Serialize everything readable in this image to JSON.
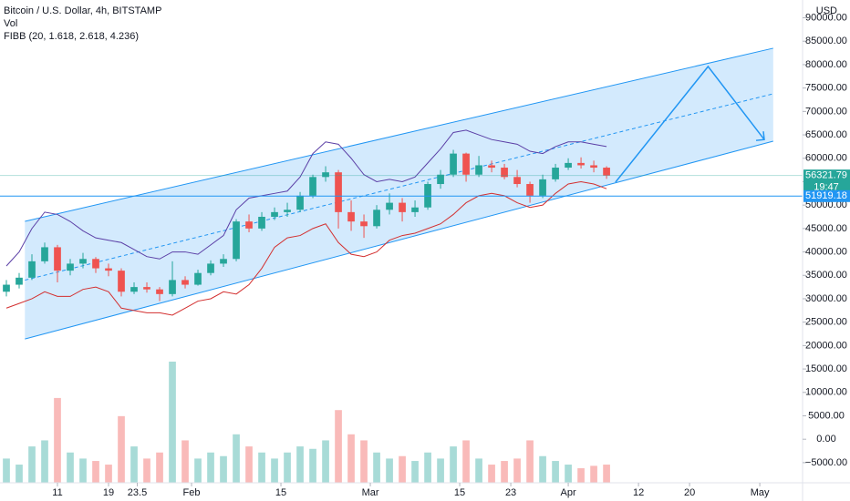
{
  "chart_data": {
    "type": "candlestick",
    "title": "Bitcoin / U.S. Dollar, 4h, BITSTAMP",
    "indicators": [
      "Vol",
      "FIBB (20, 1.618, 2.618, 4.236)"
    ],
    "currency": "USD",
    "countdown": "19:47",
    "up_color": "#26a69a",
    "down_color": "#ef5350",
    "grid": false,
    "xlim": [
      2,
      127.7
    ],
    "xticks": [
      11,
      19,
      {
        "value": 32,
        "label": "Feb"
      },
      {
        "value": 46,
        "label": "15"
      },
      {
        "value": 60,
        "label": "Mar"
      },
      {
        "value": 74,
        "label": "15"
      },
      23.5,
      {
        "value": 82,
        "label": "23"
      },
      {
        "value": 91,
        "label": "Apr"
      },
      {
        "value": 102,
        "label": "12"
      },
      {
        "value": 110,
        "label": "20"
      },
      {
        "value": 121,
        "label": "May"
      }
    ],
    "ylim": [
      -9300,
      93800
    ],
    "yticks": [
      {
        "value": 90000,
        "label": "90000.00"
      },
      {
        "value": 85000,
        "label": "85000.00"
      },
      {
        "value": 80000,
        "label": "80000.00"
      },
      {
        "value": 75000,
        "label": "75000.00"
      },
      {
        "value": 70000,
        "label": "70000.00"
      },
      {
        "value": 65000,
        "label": "65000.00"
      },
      {
        "value": 60000,
        "label": "60000.00"
      },
      {
        "value": 55000,
        "label": "55000.00"
      },
      {
        "value": 50000,
        "label": "50000.00"
      },
      {
        "value": 45000,
        "label": "45000.00"
      },
      {
        "value": 40000,
        "label": "40000.00"
      },
      {
        "value": 35000,
        "label": "35000.00"
      },
      {
        "value": 30000,
        "label": "30000.00"
      },
      {
        "value": 25000,
        "label": "25000.00"
      },
      {
        "value": 20000,
        "label": "20000.00"
      },
      {
        "value": 15000,
        "label": "15000.00"
      },
      {
        "value": 10000,
        "label": "10000.00"
      },
      {
        "value": 5000,
        "label": "5000.00"
      },
      {
        "value": 0,
        "label": "0.00"
      },
      {
        "value": -5000,
        "label": "−5000.00"
      }
    ],
    "x": [
      3,
      5,
      7,
      9,
      11,
      13,
      15,
      17,
      19,
      21,
      23,
      25,
      27,
      29,
      31,
      33,
      35,
      37,
      39,
      41,
      43,
      45,
      47,
      49,
      51,
      53,
      55,
      57,
      59,
      61,
      63,
      65,
      67,
      69,
      71,
      73,
      75,
      77,
      79,
      81,
      83,
      85,
      87,
      89,
      91,
      93,
      95,
      97
    ],
    "open": [
      31500,
      33000,
      34500,
      38000,
      41000,
      36000,
      37500,
      38500,
      36500,
      36000,
      31500,
      32500,
      32000,
      31000,
      34000,
      33000,
      35500,
      37500,
      38500,
      46500,
      45000,
      47500,
      48500,
      49000,
      52000,
      56000,
      57000,
      48500,
      46500,
      45500,
      49000,
      50500,
      48500,
      49500,
      54500,
      56500,
      61000,
      56500,
      58500,
      58000,
      56000,
      54500,
      52000,
      55500,
      58000,
      59000,
      58500,
      58000
    ],
    "high": [
      34000,
      35500,
      39500,
      42000,
      41500,
      38500,
      39800,
      38900,
      37500,
      36500,
      33500,
      33500,
      32500,
      38000,
      34800,
      36200,
      38200,
      39500,
      47000,
      48000,
      48500,
      49500,
      50500,
      52800,
      56500,
      58300,
      57500,
      51000,
      48000,
      50000,
      52500,
      51500,
      51000,
      55000,
      57500,
      61800,
      61200,
      60500,
      59500,
      58800,
      57500,
      55000,
      56500,
      58800,
      60000,
      60200,
      59500,
      58300
    ],
    "low": [
      30500,
      32200,
      34000,
      37500,
      33500,
      35000,
      36500,
      35500,
      34800,
      30500,
      31000,
      31300,
      29500,
      30500,
      32200,
      32800,
      35000,
      36800,
      38000,
      44200,
      44500,
      46800,
      47500,
      48500,
      51500,
      55000,
      45000,
      44500,
      43000,
      45000,
      48000,
      46500,
      47500,
      49000,
      53500,
      56000,
      55000,
      56000,
      57000,
      55500,
      53800,
      50500,
      51500,
      55000,
      57500,
      57800,
      57000,
      55600
    ],
    "close": [
      33000,
      34500,
      38000,
      41000,
      36000,
      37500,
      38500,
      36500,
      36000,
      31500,
      32500,
      32000,
      31000,
      34000,
      33000,
      35500,
      37500,
      38500,
      46500,
      45000,
      47500,
      48500,
      49000,
      52000,
      56000,
      57000,
      48500,
      46500,
      45500,
      49000,
      50500,
      48500,
      49500,
      54500,
      56500,
      61000,
      56500,
      58500,
      58000,
      56000,
      54500,
      52000,
      55500,
      58000,
      59000,
      58500,
      58000,
      56300
    ],
    "volume": [
      20,
      15,
      30,
      35,
      70,
      25,
      20,
      18,
      15,
      55,
      30,
      20,
      25,
      100,
      35,
      20,
      25,
      22,
      40,
      30,
      25,
      20,
      25,
      30,
      28,
      35,
      60,
      40,
      35,
      25,
      20,
      22,
      18,
      25,
      20,
      30,
      35,
      20,
      15,
      18,
      20,
      35,
      22,
      18,
      15,
      12,
      14,
      15
    ],
    "vlim": [
      0,
      100
    ],
    "bands": {
      "upper": {
        "color": "#5b3fa6",
        "values": [
          37000,
          40000,
          45000,
          48500,
          48000,
          46500,
          44500,
          43000,
          42500,
          42000,
          40500,
          39000,
          38500,
          40000,
          40000,
          39500,
          41500,
          43500,
          49000,
          51500,
          52000,
          52500,
          53000,
          56000,
          61000,
          63500,
          63000,
          60000,
          56500,
          55000,
          55500,
          55000,
          56000,
          59000,
          62000,
          65500,
          66000,
          65000,
          64000,
          63500,
          63000,
          61500,
          61000,
          62500,
          63500,
          63500,
          63000,
          62500
        ]
      },
      "lower": {
        "color": "#d32f2f",
        "values": [
          28000,
          29000,
          30000,
          31500,
          30500,
          30500,
          32000,
          32500,
          31500,
          28000,
          27500,
          27000,
          27000,
          26500,
          28000,
          29500,
          30000,
          31500,
          31000,
          33000,
          36500,
          41000,
          43000,
          43500,
          45000,
          46000,
          42000,
          39500,
          39000,
          40000,
          42500,
          43500,
          44000,
          45000,
          46000,
          48000,
          50500,
          52000,
          52500,
          52000,
          50500,
          49500,
          50000,
          52500,
          54500,
          55000,
          54500,
          53500
        ]
      }
    },
    "channel": {
      "color": "#2196f3",
      "x": [
        5.9,
        123.1
      ],
      "upper": [
        46530,
        83500
      ],
      "lower": [
        21420,
        63650
      ],
      "mid": [
        33975,
        73770
      ]
    },
    "projection": {
      "color": "#2196f3",
      "x": [
        98.4,
        112.9,
        121.7
      ],
      "values": [
        54900,
        79600,
        64000
      ]
    },
    "price_lines": [
      {
        "value": 56321.79,
        "color": "#26a69a"
      },
      {
        "value": 51919.18,
        "color": "#2196f3"
      }
    ]
  }
}
